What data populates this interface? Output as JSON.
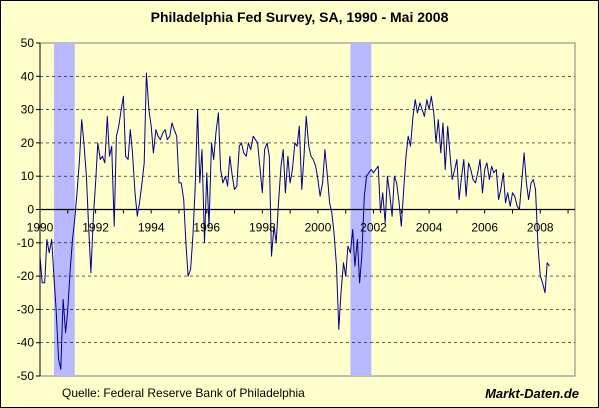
{
  "chart_data": {
    "type": "line",
    "title": "Philadelphia Fed Survey, SA, 1990 - Mai 2008",
    "xlabel": "",
    "ylabel": "",
    "xlim": [
      1990.0,
      2009.25
    ],
    "ylim": [
      -50,
      50
    ],
    "y_ticks": [
      -50,
      -40,
      -30,
      -20,
      -10,
      0,
      10,
      20,
      30,
      40,
      50
    ],
    "x_ticks": [
      1990,
      1992,
      1994,
      1996,
      1998,
      2000,
      2002,
      2004,
      2006,
      2008
    ],
    "grid": "horizontal dashed",
    "recessions": [
      {
        "start": 1990.5,
        "end": 1991.25
      },
      {
        "start": 2001.17,
        "end": 2001.92
      }
    ],
    "line_color": "#00008b",
    "recession_color": "#b8b8ff",
    "series": [
      {
        "x": [
          1990.0,
          1990.08,
          1990.17,
          1990.25,
          1990.33,
          1990.42,
          1990.5,
          1990.58,
          1990.67,
          1990.75,
          1990.83,
          1990.92,
          1991.0,
          1991.08,
          1991.17,
          1991.25,
          1991.33,
          1991.42,
          1991.5,
          1991.58,
          1991.67,
          1991.75,
          1991.83,
          1991.92,
          1992.0,
          1992.08,
          1992.17,
          1992.25,
          1992.33,
          1992.42,
          1992.5,
          1992.58,
          1992.67,
          1992.75,
          1992.83,
          1992.92,
          1993.0,
          1993.08,
          1993.17,
          1993.25,
          1993.33,
          1993.42,
          1993.5,
          1993.58,
          1993.67,
          1993.75,
          1993.83,
          1993.92,
          1994.0,
          1994.08,
          1994.17,
          1994.25,
          1994.33,
          1994.42,
          1994.5,
          1994.58,
          1994.67,
          1994.75,
          1994.83,
          1994.92,
          1995.0,
          1995.08,
          1995.17,
          1995.25,
          1995.33,
          1995.42,
          1995.5,
          1995.58,
          1995.67,
          1995.75,
          1995.83,
          1995.92,
          1996.0,
          1996.08,
          1996.17,
          1996.25,
          1996.33,
          1996.42,
          1996.5,
          1996.58,
          1996.67,
          1996.75,
          1996.83,
          1996.92,
          1997.0,
          1997.08,
          1997.17,
          1997.25,
          1997.33,
          1997.42,
          1997.5,
          1997.58,
          1997.67,
          1997.75,
          1997.83,
          1997.92,
          1998.0,
          1998.08,
          1998.17,
          1998.25,
          1998.33,
          1998.42,
          1998.5,
          1998.58,
          1998.67,
          1998.75,
          1998.83,
          1998.92,
          1999.0,
          1999.08,
          1999.17,
          1999.25,
          1999.33,
          1999.42,
          1999.5,
          1999.58,
          1999.67,
          1999.75,
          1999.83,
          1999.92,
          2000.0,
          2000.08,
          2000.17,
          2000.25,
          2000.33,
          2000.42,
          2000.5,
          2000.58,
          2000.67,
          2000.75,
          2000.83,
          2000.92,
          2001.0,
          2001.08,
          2001.17,
          2001.25,
          2001.33,
          2001.42,
          2001.5,
          2001.58,
          2001.67,
          2001.75,
          2001.83,
          2001.92,
          2002.0,
          2002.08,
          2002.17,
          2002.25,
          2002.33,
          2002.42,
          2002.5,
          2002.58,
          2002.67,
          2002.75,
          2002.83,
          2002.92,
          2003.0,
          2003.08,
          2003.17,
          2003.25,
          2003.33,
          2003.42,
          2003.5,
          2003.58,
          2003.67,
          2003.75,
          2003.83,
          2003.92,
          2004.0,
          2004.08,
          2004.17,
          2004.25,
          2004.33,
          2004.42,
          2004.5,
          2004.58,
          2004.67,
          2004.75,
          2004.83,
          2004.92,
          2005.0,
          2005.08,
          2005.17,
          2005.25,
          2005.33,
          2005.42,
          2005.5,
          2005.58,
          2005.67,
          2005.75,
          2005.83,
          2005.92,
          2006.0,
          2006.08,
          2006.17,
          2006.25,
          2006.33,
          2006.42,
          2006.5,
          2006.58,
          2006.67,
          2006.75,
          2006.83,
          2006.92,
          2007.0,
          2007.08,
          2007.17,
          2007.25,
          2007.33,
          2007.42,
          2007.5,
          2007.58,
          2007.67,
          2007.75,
          2007.83,
          2007.92,
          2008.0,
          2008.08,
          2008.17,
          2008.25,
          2008.33
        ],
        "values": [
          -14,
          -22,
          -22,
          -9,
          -13,
          -9,
          -20,
          -30,
          -45,
          -48,
          -27,
          -37,
          -30,
          -19,
          -9,
          -3,
          5,
          15,
          27,
          20,
          10,
          -5,
          -19,
          -2,
          8,
          20,
          15,
          16,
          14,
          28,
          16,
          19,
          -5,
          22,
          25,
          30,
          34,
          16,
          15,
          24,
          17,
          5,
          -2,
          2,
          8,
          14,
          41,
          30,
          25,
          17,
          24,
          22,
          21,
          23,
          24,
          21,
          22,
          26,
          24,
          22,
          8,
          8,
          3,
          -10,
          -20,
          -18,
          -8,
          6,
          30,
          8,
          18,
          -10,
          11,
          -5,
          20,
          15,
          23,
          29,
          12,
          8,
          10,
          7,
          16,
          10,
          6,
          7,
          19,
          20,
          17,
          16,
          20,
          18,
          22,
          21,
          20,
          12,
          5,
          18,
          20,
          16,
          -14,
          -5,
          -10,
          2,
          13,
          18,
          5,
          16,
          8,
          12,
          20,
          19,
          25,
          6,
          16,
          28,
          19,
          16,
          15,
          13,
          9,
          4,
          8,
          18,
          11,
          2,
          -1,
          -7,
          -17,
          -36,
          -25,
          -16,
          -20,
          -11,
          -13,
          -6,
          -17,
          -9,
          -22,
          -14,
          4,
          10,
          11,
          12,
          11,
          12,
          13,
          -1,
          5,
          -4,
          10,
          5,
          -2,
          10,
          8,
          2,
          -5,
          5,
          16,
          22,
          19,
          28,
          33,
          29,
          32,
          30,
          28,
          33,
          30,
          34,
          29,
          20,
          27,
          17,
          26,
          12,
          25,
          17,
          9,
          12,
          15,
          3,
          10,
          15,
          4,
          14,
          12,
          9,
          8,
          11,
          15,
          5,
          12,
          14,
          9,
          13,
          11,
          12,
          3,
          6,
          11,
          2,
          5,
          1,
          5,
          4,
          1,
          0,
          8,
          17,
          8,
          3,
          8,
          9,
          6,
          -11,
          -20,
          -22,
          -25,
          -16,
          -17
        ]
      }
    ]
  },
  "footer": {
    "source": "Quelle: Federal Reserve Bank of Philadelphia",
    "brand": "Markt-Daten.de"
  }
}
